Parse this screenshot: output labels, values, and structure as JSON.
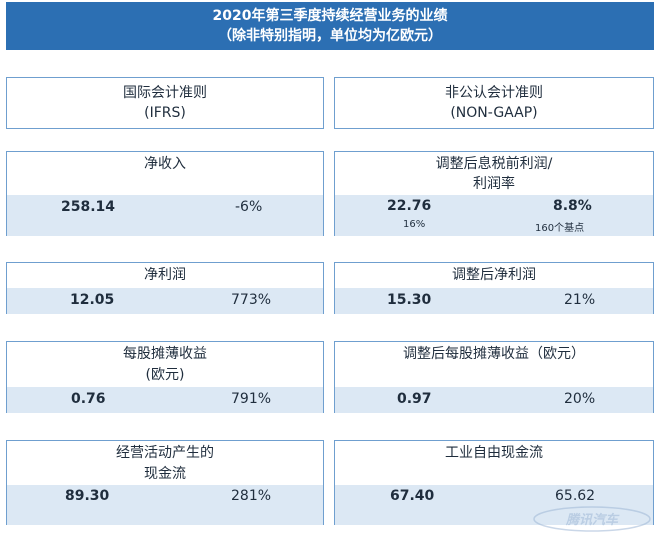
{
  "header": {
    "line1": "2020年第三季度持续经营业务的业绩",
    "line2": "（除非特别指明，单位均为亿欧元）"
  },
  "standards": {
    "left": {
      "line1": "国际会计准则",
      "line2": "(IFRS)"
    },
    "right": {
      "line1": "非公认会计准则",
      "line2": "(NON-GAAP)"
    }
  },
  "metrics": {
    "net_revenue": {
      "title": "净收入",
      "value": "258.14",
      "change": "-6%"
    },
    "adj_ebit": {
      "title_line1": "调整后息税前利润/",
      "title_line2": "利润率",
      "value": "22.76",
      "value_sub": "16%",
      "margin": "8.8%",
      "margin_sub": "160个基点"
    },
    "net_profit": {
      "title": "净利润",
      "value": "12.05",
      "change": "773%"
    },
    "adj_net_profit": {
      "title": "调整后净利润",
      "value": "15.30",
      "change": "21%"
    },
    "eps": {
      "title_line1": "每股摊薄收益",
      "title_line2": "(欧元)",
      "value": "0.76",
      "change": "791%"
    },
    "adj_eps": {
      "title": "调整后每股摊薄收益（欧元）",
      "value": "0.97",
      "change": "20%"
    },
    "op_cash_flow": {
      "title_line1": "经营活动产生的",
      "title_line2": "现金流",
      "value": "89.30",
      "change": "281%"
    },
    "industrial_fcf": {
      "title": "工业自由现金流",
      "value": "67.40",
      "change": "65.62"
    }
  },
  "watermark": {
    "text": "腾讯汽车",
    "color": "#9fb8d6"
  }
}
